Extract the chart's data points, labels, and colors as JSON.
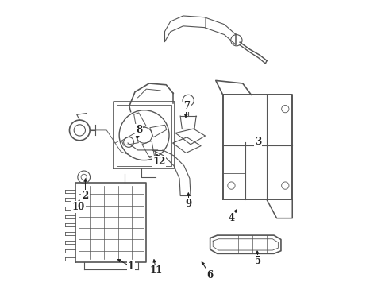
{
  "bg_color": "#ffffff",
  "line_color": "#555555",
  "label_color": "#222222",
  "figsize": [
    4.9,
    3.6
  ],
  "dpi": 100
}
